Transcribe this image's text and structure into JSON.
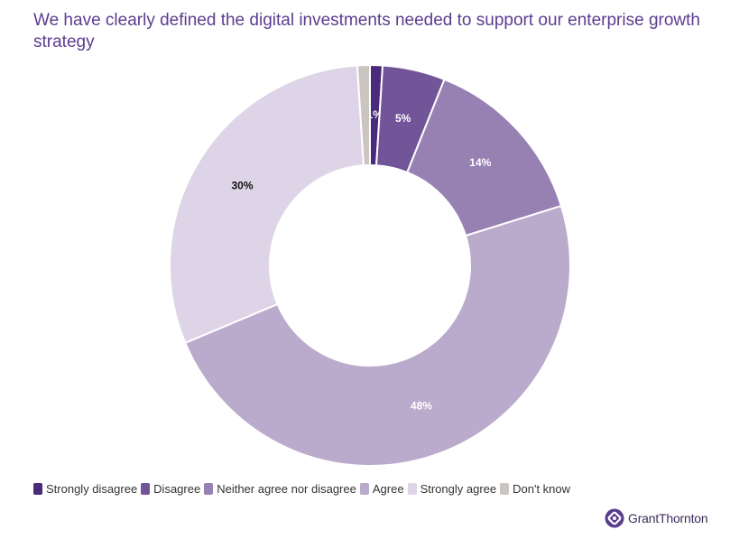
{
  "chart_data": {
    "type": "pie",
    "variant": "donut",
    "title": "We have clearly defined the digital investments needed to support our enterprise growth strategy",
    "categories": [
      "Strongly disagree",
      "Disagree",
      "Neither agree nor disagree",
      "Agree",
      "Strongly agree",
      "Don't know"
    ],
    "values": [
      1,
      5,
      14,
      48,
      30,
      1
    ],
    "labels": [
      "1%",
      "5%",
      "14%",
      "48%",
      "30%",
      ""
    ],
    "colors": [
      "#4a2a7a",
      "#725498",
      "#9781b3",
      "#baaacc",
      "#ddd5e7",
      "#cbc5c1"
    ],
    "label_colors": [
      "#ffffff",
      "#ffffff",
      "#ffffff",
      "#ffffff",
      "#111111",
      "#111111"
    ],
    "legend_position": "bottom-left"
  },
  "branding": {
    "name": "GrantThornton",
    "logo_color": "#5b3d8f"
  }
}
